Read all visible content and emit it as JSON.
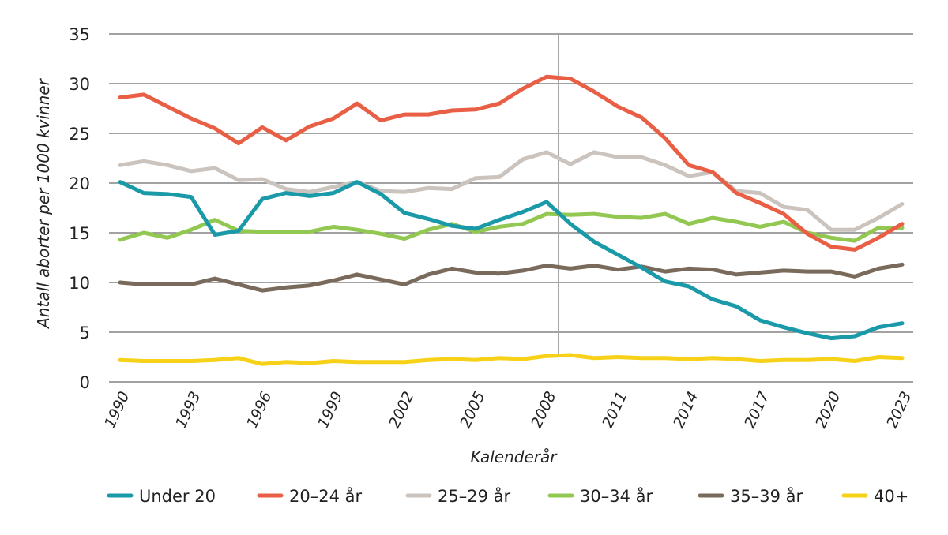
{
  "chart_data": {
    "type": "line",
    "title": "",
    "xlabel": "Kalenderår",
    "ylabel": "Antall aborter per 1000 kvinner",
    "ylim": [
      0,
      35
    ],
    "yticks": [
      0,
      5,
      10,
      15,
      20,
      25,
      30,
      35
    ],
    "xlim": [
      1990,
      2023
    ],
    "xticks": [
      "1990",
      "1993",
      "1996",
      "1999",
      "2002",
      "2005",
      "2008",
      "2011",
      "2014",
      "2017",
      "2020",
      "2023"
    ],
    "grid": true,
    "legend_position": "bottom",
    "reference_line": {
      "orientation": "vertical",
      "x": 2008.5,
      "color": "#a6a6a6"
    },
    "x": [
      1990,
      1991,
      1992,
      1993,
      1994,
      1995,
      1996,
      1997,
      1998,
      1999,
      2000,
      2001,
      2002,
      2003,
      2004,
      2005,
      2006,
      2007,
      2008,
      2009,
      2010,
      2011,
      2012,
      2013,
      2014,
      2015,
      2016,
      2017,
      2018,
      2019,
      2020,
      2021,
      2022,
      2023
    ],
    "series": [
      {
        "name": "Under 20",
        "color": "#1a9aa8",
        "values": [
          20.1,
          19.0,
          18.9,
          18.6,
          14.8,
          15.2,
          18.4,
          19.0,
          18.7,
          19.0,
          20.1,
          18.9,
          17.0,
          16.4,
          15.7,
          15.4,
          16.3,
          17.1,
          18.1,
          15.9,
          14.1,
          12.8,
          11.5,
          10.1,
          9.6,
          8.3,
          7.6,
          6.2,
          5.5,
          4.9,
          4.4,
          4.6,
          5.5,
          5.9
        ]
      },
      {
        "name": "20–24 år",
        "color": "#e95f45",
        "values": [
          28.6,
          28.9,
          27.7,
          26.5,
          25.5,
          24.0,
          25.6,
          24.3,
          25.7,
          26.5,
          28.0,
          26.3,
          26.9,
          26.9,
          27.3,
          27.4,
          28.0,
          29.5,
          30.7,
          30.5,
          29.2,
          27.7,
          26.6,
          24.5,
          21.8,
          21.1,
          19.0,
          18.0,
          16.9,
          14.9,
          13.6,
          13.3,
          14.5,
          15.9
        ]
      },
      {
        "name": "25–29 år",
        "color": "#cbc3bd",
        "values": [
          21.8,
          22.2,
          21.8,
          21.2,
          21.5,
          20.3,
          20.4,
          19.4,
          19.1,
          19.6,
          20.1,
          19.2,
          19.1,
          19.5,
          19.4,
          20.5,
          20.6,
          22.4,
          23.1,
          21.9,
          23.1,
          22.6,
          22.6,
          21.8,
          20.7,
          21.1,
          19.2,
          19.0,
          17.6,
          17.3,
          15.3,
          15.3,
          16.5,
          17.9
        ]
      },
      {
        "name": "30–34 år",
        "color": "#92c852",
        "values": [
          14.3,
          15.0,
          14.5,
          15.3,
          16.3,
          15.2,
          15.1,
          15.1,
          15.1,
          15.6,
          15.3,
          14.9,
          14.4,
          15.3,
          15.9,
          15.1,
          15.6,
          15.9,
          16.9,
          16.8,
          16.9,
          16.6,
          16.5,
          16.9,
          15.9,
          16.5,
          16.1,
          15.6,
          16.1,
          15.0,
          14.5,
          14.2,
          15.5,
          15.5
        ]
      },
      {
        "name": "35–39 år",
        "color": "#7a6a5c",
        "values": [
          10.0,
          9.8,
          9.8,
          9.8,
          10.4,
          9.8,
          9.2,
          9.5,
          9.7,
          10.2,
          10.8,
          10.3,
          9.8,
          10.8,
          11.4,
          11.0,
          10.9,
          11.2,
          11.7,
          11.4,
          11.7,
          11.3,
          11.6,
          11.1,
          11.4,
          11.3,
          10.8,
          11.0,
          11.2,
          11.1,
          11.1,
          10.6,
          11.4,
          11.8
        ]
      },
      {
        "name": "40+",
        "color": "#f7d117",
        "values": [
          2.2,
          2.1,
          2.1,
          2.1,
          2.2,
          2.4,
          1.8,
          2.0,
          1.9,
          2.1,
          2.0,
          2.0,
          2.0,
          2.2,
          2.3,
          2.2,
          2.4,
          2.3,
          2.6,
          2.7,
          2.4,
          2.5,
          2.4,
          2.4,
          2.3,
          2.4,
          2.3,
          2.1,
          2.2,
          2.2,
          2.3,
          2.1,
          2.5,
          2.4
        ]
      }
    ]
  }
}
